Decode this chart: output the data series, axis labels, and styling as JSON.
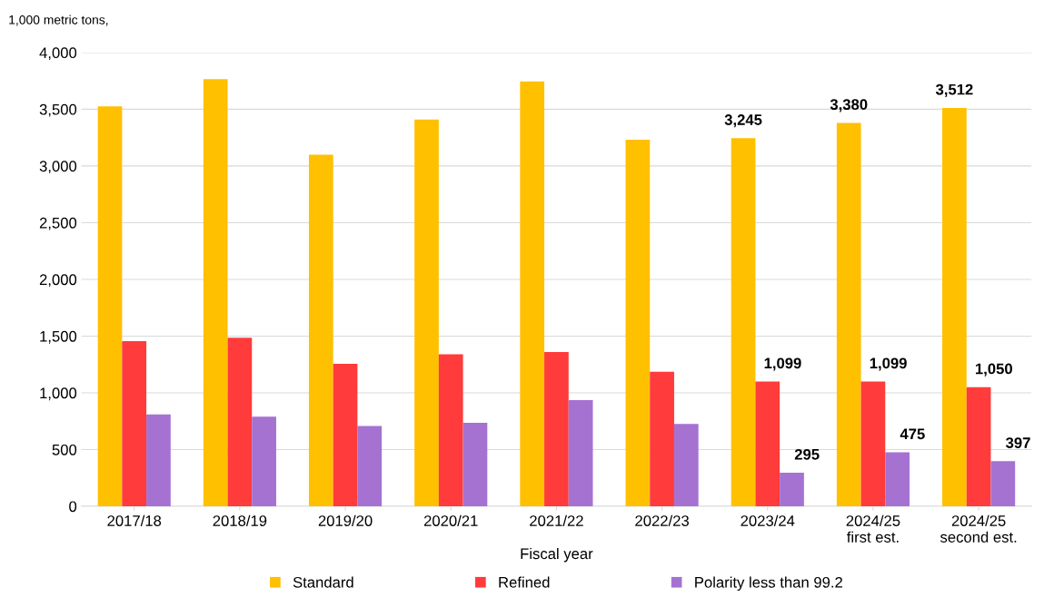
{
  "chart_data": {
    "type": "bar",
    "ylabel": "1,000 metric tons,",
    "xlabel": "Fiscal year",
    "categories": [
      "2017/18",
      "2018/19",
      "2019/20",
      "2020/21",
      "2021/22",
      "2022/23",
      "2023/24",
      "2024/25\nfirst est.",
      "2024/25\nsecond est."
    ],
    "series": [
      {
        "name": "Standard",
        "color": "#ffc000",
        "values": [
          3525,
          3765,
          3100,
          3410,
          3745,
          3232,
          3245,
          3380,
          3512
        ],
        "value_labels": [
          null,
          null,
          null,
          null,
          null,
          null,
          "3,245",
          "3,380",
          "3,512"
        ]
      },
      {
        "name": "Refined",
        "color": "#ff3b3b",
        "values": [
          1455,
          1485,
          1255,
          1340,
          1360,
          1185,
          1099,
          1099,
          1050
        ],
        "value_labels": [
          null,
          null,
          null,
          null,
          null,
          null,
          "1,099",
          "1,099",
          "1,050"
        ]
      },
      {
        "name": "Polarity less than 99.2",
        "color": "#a572d2",
        "values": [
          810,
          790,
          707,
          735,
          935,
          725,
          295,
          475,
          397
        ],
        "value_labels": [
          null,
          null,
          null,
          null,
          null,
          null,
          "295",
          "475",
          "397"
        ]
      }
    ],
    "ylim": [
      0,
      4000
    ],
    "yticks": [
      0,
      {
        "value": 500,
        "label": "500"
      },
      {
        "value": 1000,
        "label": "1,000"
      },
      {
        "value": 1500,
        "label": "1,500"
      },
      {
        "value": 2000,
        "label": "2,000"
      },
      {
        "value": 2500,
        "label": "2,500"
      },
      {
        "value": 3000,
        "label": "3,000"
      },
      {
        "value": 3500,
        "label": "3,500"
      },
      {
        "value": 4000,
        "label": "4,000"
      }
    ],
    "grid": "y",
    "legend": "bottom"
  }
}
